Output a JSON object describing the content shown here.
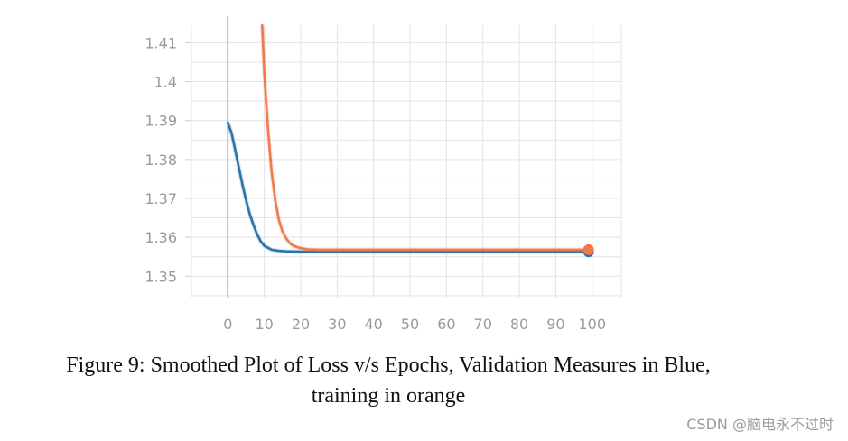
{
  "chart_data": {
    "type": "line",
    "title": "",
    "xlabel": "",
    "ylabel": "",
    "xlim": [
      -10,
      108
    ],
    "ylim": [
      1.3445,
      1.4145
    ],
    "x_ticks": [
      0,
      10,
      20,
      30,
      40,
      50,
      60,
      70,
      80,
      90,
      100
    ],
    "x_tick_labels": [
      "0",
      "10",
      "20",
      "30",
      "40",
      "50",
      "60",
      "70",
      "80",
      "90",
      "100"
    ],
    "y_ticks": [
      1.35,
      1.36,
      1.37,
      1.38,
      1.39,
      1.4,
      1.41
    ],
    "y_tick_labels": [
      "1.35",
      "1.36",
      "1.37",
      "1.38",
      "1.39",
      "1.4",
      "1.41"
    ],
    "grid": true,
    "series": [
      {
        "name": "validation",
        "color": "#2c74a8",
        "x": [
          0,
          1,
          2,
          3,
          4,
          5,
          6,
          7,
          8,
          9,
          10,
          12,
          14,
          16,
          20,
          30,
          40,
          50,
          60,
          70,
          80,
          90,
          99
        ],
        "y": [
          1.3895,
          1.3868,
          1.3825,
          1.378,
          1.3735,
          1.3695,
          1.366,
          1.3632,
          1.3608,
          1.359,
          1.3578,
          1.3568,
          1.3565,
          1.3564,
          1.3563,
          1.3563,
          1.3563,
          1.3563,
          1.3563,
          1.3563,
          1.3563,
          1.3563,
          1.3563
        ],
        "end_marker": true
      },
      {
        "name": "training",
        "color": "#ef7a4e",
        "x": [
          9.4,
          10,
          11,
          12,
          13,
          14,
          15,
          16,
          17,
          18,
          20,
          22,
          25,
          30,
          40,
          50,
          60,
          70,
          80,
          90,
          99
        ],
        "y": [
          1.4145,
          1.402,
          1.388,
          1.377,
          1.3695,
          1.3645,
          1.3615,
          1.3597,
          1.3585,
          1.3578,
          1.3572,
          1.3569,
          1.3568,
          1.3568,
          1.3568,
          1.3568,
          1.3568,
          1.3568,
          1.3568,
          1.3568,
          1.3568
        ],
        "end_marker": true
      }
    ]
  },
  "caption": {
    "line1": "Figure 9: Smoothed Plot of Loss v/s Epochs, Validation Measures in Blue,",
    "line2": "training in orange"
  },
  "watermark": "CSDN @脑电永不过时"
}
